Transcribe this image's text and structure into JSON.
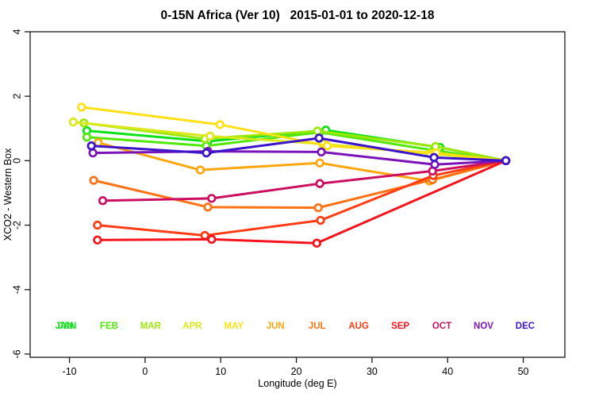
{
  "chart_data": {
    "type": "line",
    "title": "0-15N Africa (Ver 10)   2015-01-01 to 2020-12-18",
    "xlabel": "Longitude (deg E)",
    "ylabel": "XCO2 - Western Box",
    "xlim": [
      -15.2,
      55.5
    ],
    "ylim": [
      -6.1,
      4.0
    ],
    "xticks": [
      -10,
      0,
      10,
      20,
      30,
      40,
      50
    ],
    "yticks": [
      -6,
      -4,
      -2,
      0,
      2,
      4
    ],
    "grid": false,
    "marker": "open-circle",
    "legend_position": "inside-bottom-row",
    "series": [
      {
        "name": "JAN",
        "color": "#0ce118",
        "legend_doubled": true,
        "points": [
          [
            -7.7,
            0.93
          ],
          [
            8.3,
            0.6
          ],
          [
            23.9,
            0.95
          ],
          [
            39.0,
            0.41
          ],
          [
            47.7,
            0.0
          ]
        ]
      },
      {
        "name": "FEB",
        "color": "#52e80c",
        "points": [
          [
            -7.7,
            0.73
          ],
          [
            8.1,
            0.46
          ],
          [
            23.1,
            0.88
          ],
          [
            38.2,
            0.32
          ],
          [
            47.7,
            0.0
          ]
        ]
      },
      {
        "name": "MAR",
        "color": "#9ce80a",
        "points": [
          [
            -8.1,
            1.17
          ],
          [
            7.9,
            0.68
          ],
          [
            22.8,
            0.92
          ],
          [
            38.4,
            0.44
          ],
          [
            47.7,
            0.0
          ]
        ]
      },
      {
        "name": "APR",
        "color": "#dbe81c",
        "points": [
          [
            -9.5,
            1.2
          ],
          [
            8.6,
            0.76
          ],
          [
            23.5,
            0.52
          ],
          [
            37.7,
            0.22
          ],
          [
            47.7,
            0.0
          ]
        ]
      },
      {
        "name": "MAY",
        "color": "#ffe014",
        "points": [
          [
            -8.4,
            1.66
          ],
          [
            9.9,
            1.12
          ],
          [
            24.1,
            0.46
          ],
          [
            38.5,
            0.24
          ],
          [
            47.7,
            0.0
          ]
        ]
      },
      {
        "name": "JUN",
        "color": "#ffa60f",
        "points": [
          [
            -6.2,
            0.56
          ],
          [
            7.3,
            -0.29
          ],
          [
            23.1,
            -0.07
          ],
          [
            37.6,
            -0.63
          ],
          [
            47.7,
            0.0
          ]
        ]
      },
      {
        "name": "JUL",
        "color": "#ff7214",
        "points": [
          [
            -6.8,
            -0.61
          ],
          [
            8.3,
            -1.44
          ],
          [
            22.9,
            -1.46
          ],
          [
            38.0,
            -0.59
          ],
          [
            47.7,
            0.0
          ]
        ]
      },
      {
        "name": "AUG",
        "color": "#ff3c14",
        "points": [
          [
            -6.3,
            -2.0
          ],
          [
            7.9,
            -2.32
          ],
          [
            23.2,
            -1.85
          ],
          [
            38.1,
            -0.46
          ],
          [
            47.7,
            0.0
          ]
        ]
      },
      {
        "name": "SEP",
        "color": "#f5141e",
        "points": [
          [
            -6.3,
            -2.46
          ],
          [
            8.8,
            -2.44
          ],
          [
            22.7,
            -2.56
          ],
          [
            47.7,
            0.0
          ]
        ]
      },
      {
        "name": "OCT",
        "color": "#cc1061",
        "points": [
          [
            -5.6,
            -1.24
          ],
          [
            8.8,
            -1.17
          ],
          [
            23.1,
            -0.71
          ],
          [
            38.0,
            -0.32
          ],
          [
            47.7,
            0.0
          ]
        ]
      },
      {
        "name": "NOV",
        "color": "#7a14b8",
        "points": [
          [
            -6.9,
            0.24
          ],
          [
            8.3,
            0.29
          ],
          [
            23.3,
            0.27
          ],
          [
            38.3,
            -0.12
          ],
          [
            47.7,
            0.0
          ]
        ]
      },
      {
        "name": "DEC",
        "color": "#3c14cc",
        "points": [
          [
            -7.1,
            0.46
          ],
          [
            8.1,
            0.24
          ],
          [
            23.0,
            0.7
          ],
          [
            38.2,
            0.1
          ],
          [
            47.7,
            0.0
          ]
        ]
      }
    ]
  }
}
